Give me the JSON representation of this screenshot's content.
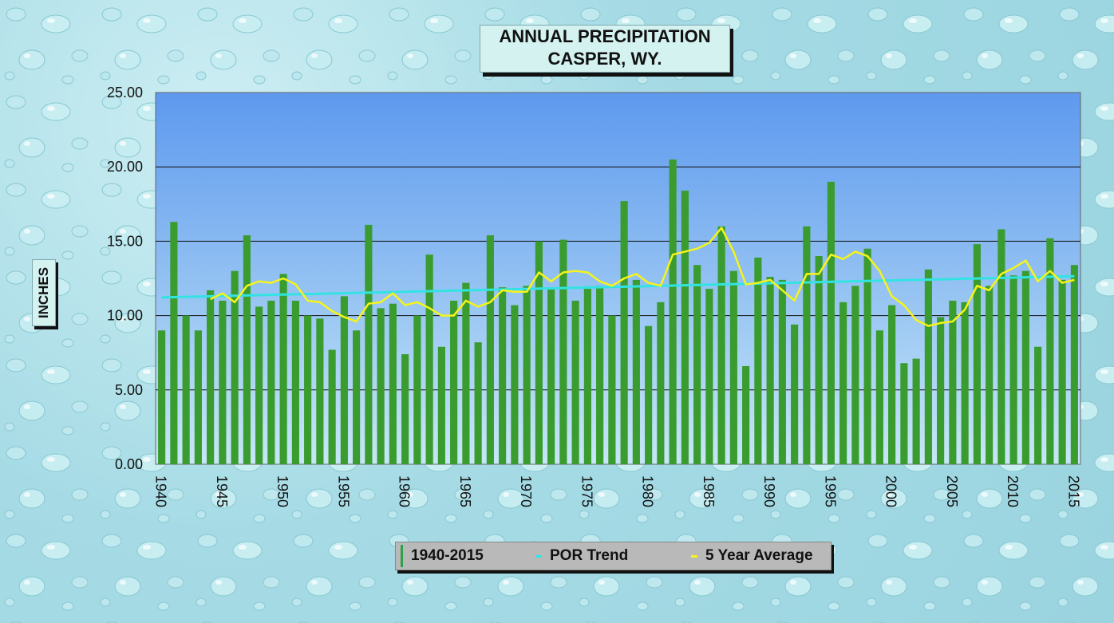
{
  "title_line1": "ANNUAL PRECIPITATION",
  "title_line2": "CASPER, WY.",
  "ylabel": "INCHES",
  "colors": {
    "bars": "#3a9c2f",
    "trend": "#33e3e3",
    "avg": "#f6f41a",
    "plot_top": "#5d99ee",
    "plot_bottom": "#c6e7f6",
    "legend_bars": "#2fa04a"
  },
  "chart_data": {
    "type": "bar",
    "title": "ANNUAL PRECIPITATION CASPER, WY.",
    "ylabel": "INCHES",
    "xlabel": "",
    "ylim": [
      0,
      25
    ],
    "yticks": [
      "0.00",
      "5.00",
      "10.00",
      "15.00",
      "20.00",
      "25.00"
    ],
    "xticks": [
      "1940",
      "1945",
      "1950",
      "1955",
      "1960",
      "1965",
      "1970",
      "1975",
      "1980",
      "1985",
      "1990",
      "1995",
      "2000",
      "2005",
      "2010",
      "2015"
    ],
    "grid": true,
    "legend_position": "bottom",
    "x": [
      1940,
      1941,
      1942,
      1943,
      1944,
      1945,
      1946,
      1947,
      1948,
      1949,
      1950,
      1951,
      1952,
      1953,
      1954,
      1955,
      1956,
      1957,
      1958,
      1959,
      1960,
      1961,
      1962,
      1963,
      1964,
      1965,
      1966,
      1967,
      1968,
      1969,
      1970,
      1971,
      1972,
      1973,
      1974,
      1975,
      1976,
      1977,
      1978,
      1979,
      1980,
      1981,
      1982,
      1983,
      1984,
      1985,
      1986,
      1987,
      1988,
      1989,
      1990,
      1991,
      1992,
      1993,
      1994,
      1995,
      1996,
      1997,
      1998,
      1999,
      2000,
      2001,
      2002,
      2003,
      2004,
      2005,
      2006,
      2007,
      2008,
      2009,
      2010,
      2011,
      2012,
      2013,
      2014,
      2015
    ],
    "series": [
      {
        "name": "1940-2015",
        "type": "bar",
        "values": [
          9.0,
          16.3,
          10.0,
          9.0,
          11.7,
          11.0,
          13.0,
          15.4,
          10.6,
          11.0,
          12.8,
          11.0,
          10.0,
          9.8,
          7.7,
          11.3,
          9.0,
          16.1,
          10.5,
          10.8,
          7.4,
          10.0,
          14.1,
          7.9,
          11.0,
          12.2,
          8.2,
          15.4,
          11.9,
          10.7,
          12.0,
          15.0,
          11.8,
          15.1,
          11.0,
          11.8,
          12.0,
          10.0,
          17.7,
          12.4,
          9.3,
          10.9,
          20.5,
          18.4,
          13.4,
          11.8,
          16.0,
          13.0,
          6.6,
          13.9,
          12.6,
          12.4,
          9.4,
          16.0,
          14.0,
          19.0,
          10.9,
          12.0,
          14.5,
          9.0,
          10.7,
          6.8,
          7.1,
          13.1,
          9.9,
          11.0,
          10.9,
          14.8,
          12.0,
          15.8,
          12.7,
          13.0,
          7.9,
          15.2,
          12.4,
          13.4
        ]
      },
      {
        "name": "POR Trend",
        "type": "line",
        "x": [
          1940,
          2015
        ],
        "values": [
          11.22,
          12.65
        ]
      },
      {
        "name": "5 Year Average",
        "type": "line",
        "x": [
          1944,
          1945,
          1946,
          1947,
          1948,
          1949,
          1950,
          1951,
          1952,
          1953,
          1954,
          1955,
          1956,
          1957,
          1958,
          1959,
          1960,
          1961,
          1962,
          1963,
          1964,
          1965,
          1966,
          1967,
          1968,
          1969,
          1970,
          1971,
          1972,
          1973,
          1974,
          1975,
          1976,
          1977,
          1978,
          1979,
          1980,
          1981,
          1982,
          1983,
          1984,
          1985,
          1986,
          1987,
          1988,
          1989,
          1990,
          1991,
          1992,
          1993,
          1994,
          1995,
          1996,
          1997,
          1998,
          1999,
          2000,
          2001,
          2002,
          2003,
          2004,
          2005,
          2006,
          2007,
          2008,
          2009,
          2010,
          2011,
          2012,
          2013,
          2014,
          2015
        ],
        "values": [
          11.1,
          11.5,
          10.9,
          12.0,
          12.3,
          12.2,
          12.5,
          12.1,
          11.0,
          10.9,
          10.3,
          9.9,
          9.6,
          10.8,
          10.9,
          11.5,
          10.7,
          10.9,
          10.5,
          10.0,
          10.0,
          11.0,
          10.6,
          10.9,
          11.7,
          11.6,
          11.6,
          12.9,
          12.3,
          12.9,
          13.0,
          12.9,
          12.3,
          12.0,
          12.5,
          12.8,
          12.2,
          12.0,
          14.1,
          14.3,
          14.5,
          14.9,
          15.9,
          14.3,
          12.1,
          12.2,
          12.4,
          11.7,
          11.0,
          12.8,
          12.8,
          14.1,
          13.8,
          14.3,
          14.0,
          13.0,
          11.3,
          10.7,
          9.7,
          9.3,
          9.5,
          9.6,
          10.4,
          12.0,
          11.7,
          12.8,
          13.2,
          13.7,
          12.3,
          13.0,
          12.2,
          12.4
        ]
      }
    ]
  }
}
